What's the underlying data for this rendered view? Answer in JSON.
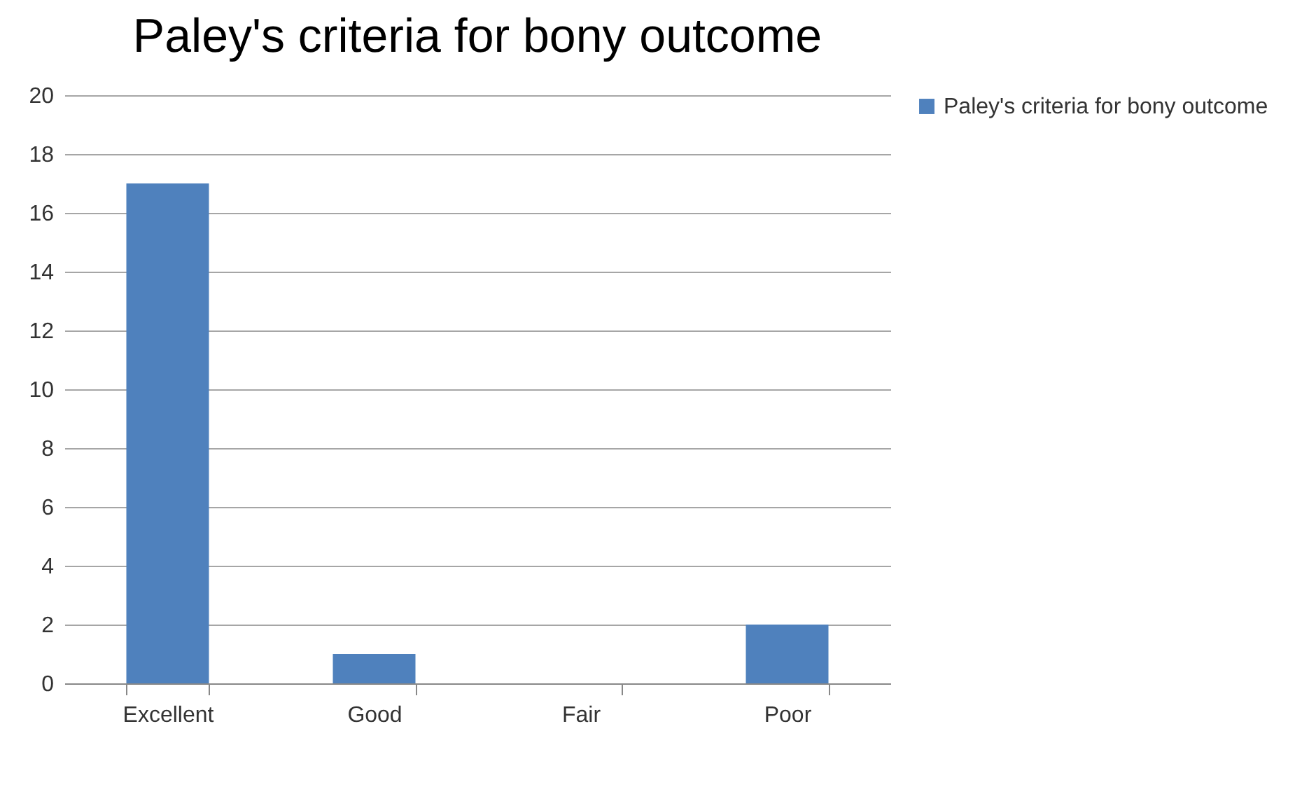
{
  "chart_data": {
    "type": "bar",
    "title": "Paley's criteria for bony outcome",
    "categories": [
      "Excellent",
      "Good",
      "Fair",
      "Poor"
    ],
    "series": [
      {
        "name": "Paley's criteria for bony outcome",
        "color": "#4f81bd",
        "values": [
          17,
          1,
          0,
          2
        ]
      }
    ],
    "ylim": [
      0,
      20
    ],
    "yticks": [
      0,
      2,
      4,
      6,
      8,
      10,
      12,
      14,
      16,
      18,
      20
    ],
    "grid": "y",
    "legend": "right"
  }
}
